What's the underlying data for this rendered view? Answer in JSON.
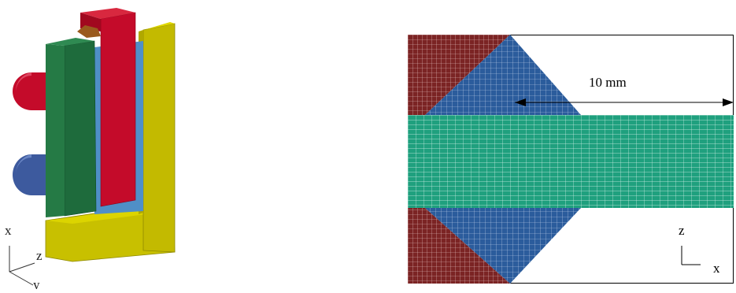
{
  "left_figure": {
    "axes": {
      "x": "x",
      "y": "y",
      "z": "z"
    }
  },
  "right_figure": {
    "dimension_label": "10 mm",
    "axes": {
      "z": "z",
      "x": "x"
    }
  },
  "colors": {
    "yellow": "#c8c000",
    "green": "#1e6b3c",
    "red": "#c40b2a",
    "blue_pin": "#3d5a9e",
    "teal_mesh": "#1fa07e",
    "blue_mesh": "#2b5c9c",
    "maroon_mesh": "#7b2424"
  }
}
